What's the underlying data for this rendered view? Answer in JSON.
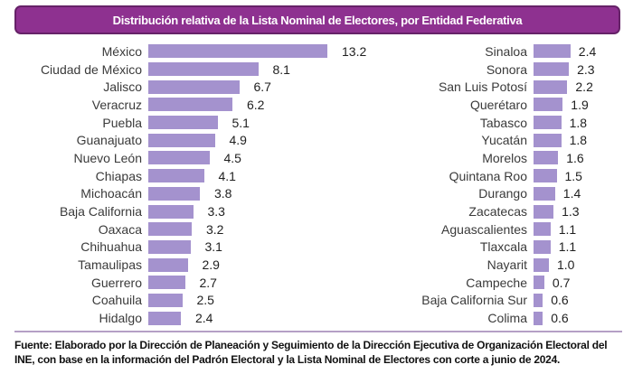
{
  "header": {
    "title": "Distribución relativa de la Lista Nominal de Electores, por Entidad Federativa"
  },
  "chart_data": {
    "type": "bar",
    "orientation": "horizontal",
    "title": "Distribución relativa de la Lista Nominal de Electores, por Entidad Federativa",
    "value_unit": "percent",
    "xlim": [
      0,
      14
    ],
    "grid": false,
    "legend": "none",
    "columns": {
      "left": {
        "categories": [
          "México",
          "Ciudad de México",
          "Jalisco",
          "Veracruz",
          "Puebla",
          "Guanajuato",
          "Nuevo León",
          "Chiapas",
          "Michoacán",
          "Baja California",
          "Oaxaca",
          "Chihuahua",
          "Tamaulipas",
          "Guerrero",
          "Coahuila",
          "Hidalgo"
        ],
        "values": [
          13.2,
          8.1,
          6.7,
          6.2,
          5.1,
          4.9,
          4.5,
          4.1,
          3.8,
          3.3,
          3.2,
          3.1,
          2.9,
          2.7,
          2.5,
          2.4
        ],
        "value_labels": [
          "13.2",
          "8.1",
          "6.7",
          "6.2",
          "5.1",
          "4.9",
          "4.5",
          "4.1",
          "3.8",
          "3.3",
          "3.2",
          "3.1",
          "2.9",
          "2.7",
          "2.5",
          "2.4"
        ]
      },
      "right": {
        "categories": [
          "Sinaloa",
          "Sonora",
          "San Luis Potosí",
          "Querétaro",
          "Tabasco",
          "Yucatán",
          "Morelos",
          "Quintana Roo",
          "Durango",
          "Zacatecas",
          "Aguascalientes",
          "Tlaxcala",
          "Nayarit",
          "Campeche",
          "Baja California Sur",
          "Colima"
        ],
        "values": [
          2.4,
          2.3,
          2.2,
          1.9,
          1.8,
          1.8,
          1.6,
          1.5,
          1.4,
          1.3,
          1.1,
          1.1,
          1.0,
          0.7,
          0.6,
          0.6
        ],
        "value_labels": [
          "2.4",
          "2.3",
          "2.2",
          "1.9",
          "1.8",
          "1.8",
          "1.6",
          "1.5",
          "1.4",
          "1.3",
          "1.1",
          "1.1",
          "1.0",
          "0.7",
          "0.6",
          "0.6"
        ]
      }
    }
  },
  "footer": {
    "source": "Fuente: Elaborado por la Dirección de Planeación y Seguimiento de la Dirección Ejecutiva de Organización Electoral del INE, con base en la información del Padrón Electoral y la Lista Nominal de Electores con corte a junio de 2024."
  },
  "colors": {
    "bar": "#a492ce",
    "title_bg": "#8e3190",
    "title_border": "#662268",
    "divider": "#b5a0c6"
  }
}
